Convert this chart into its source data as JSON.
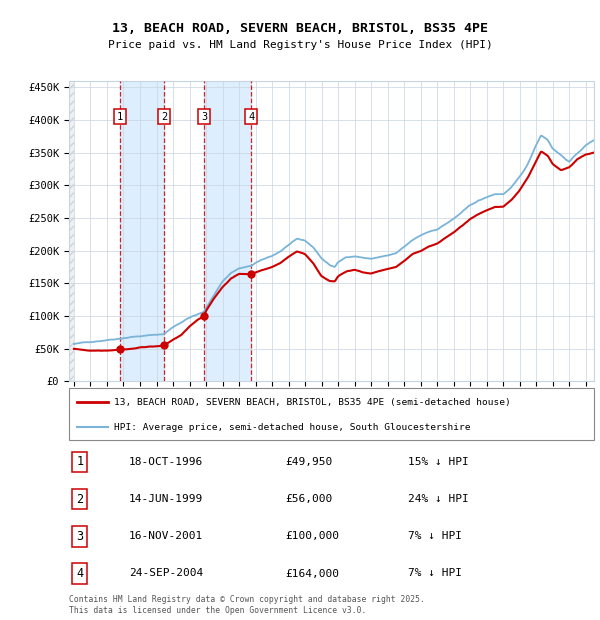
{
  "title_line1": "13, BEACH ROAD, SEVERN BEACH, BRISTOL, BS35 4PE",
  "title_line2": "Price paid vs. HM Land Registry's House Price Index (HPI)",
  "ylabel_ticks": [
    "£0",
    "£50K",
    "£100K",
    "£150K",
    "£200K",
    "£250K",
    "£300K",
    "£350K",
    "£400K",
    "£450K"
  ],
  "ytick_vals": [
    0,
    50000,
    100000,
    150000,
    200000,
    250000,
    300000,
    350000,
    400000,
    450000
  ],
  "ylim": [
    0,
    460000
  ],
  "xlim_start": 1993.7,
  "xlim_end": 2025.5,
  "sale_years": [
    1996.79,
    1999.45,
    2001.88,
    2004.73
  ],
  "sale_prices": [
    49950,
    56000,
    100000,
    164000
  ],
  "transactions": [
    {
      "num": 1,
      "date": "18-OCT-1996",
      "price": "£49,950",
      "pct": "15% ↓ HPI",
      "year": 1996.79
    },
    {
      "num": 2,
      "date": "14-JUN-1999",
      "price": "£56,000",
      "pct": "24% ↓ HPI",
      "year": 1999.45
    },
    {
      "num": 3,
      "date": "16-NOV-2001",
      "price": "£100,000",
      "pct": "7% ↓ HPI",
      "year": 2001.88
    },
    {
      "num": 4,
      "date": "24-SEP-2004",
      "price": "£164,000",
      "pct": "7% ↓ HPI",
      "year": 2004.73
    }
  ],
  "legend_line1": "13, BEACH ROAD, SEVERN BEACH, BRISTOL, BS35 4PE (semi-detached house)",
  "legend_line2": "HPI: Average price, semi-detached house, South Gloucestershire",
  "footer": "Contains HM Land Registry data © Crown copyright and database right 2025.\nThis data is licensed under the Open Government Licence v3.0.",
  "hpi_color": "#7ab4d8",
  "price_color": "#cc0000",
  "shade_color": "#ddeeff",
  "grid_color": "#c8d4e0",
  "hatch_color": "#c8d4e0"
}
